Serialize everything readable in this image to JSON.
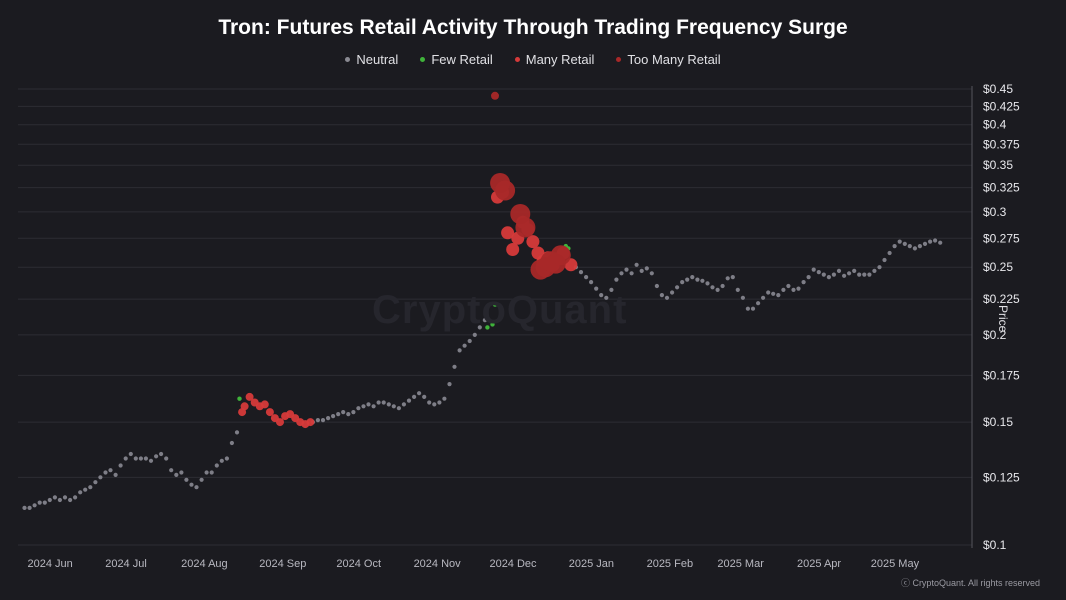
{
  "chart_data": {
    "type": "scatter",
    "title": "Tron: Futures Retail Activity Through Trading Frequency Surge",
    "legend": [
      {
        "label": "Neutral",
        "color": "#8a8a92"
      },
      {
        "label": "Few Retail",
        "color": "#3fb33a"
      },
      {
        "label": "Many Retail",
        "color": "#d63a3a"
      },
      {
        "label": "Too Many Retail",
        "color": "#a82828"
      }
    ],
    "ylabel": "Price",
    "yscale": "log",
    "ylim": [
      0.1,
      0.45
    ],
    "yticks": [
      "$0.1",
      "$0.125",
      "$0.15",
      "$0.175",
      "$0.2",
      "$0.225",
      "$0.25",
      "$0.275",
      "$0.3",
      "$0.325",
      "$0.35",
      "$0.375",
      "$0.4",
      "$0.425",
      "$0.45"
    ],
    "yticks_values": [
      0.1,
      0.125,
      0.15,
      0.175,
      0.2,
      0.225,
      0.25,
      0.275,
      0.3,
      0.325,
      0.35,
      0.375,
      0.4,
      0.425,
      0.45
    ],
    "xticks": [
      "2024 Jun",
      "2024 Jul",
      "2024 Aug",
      "2024 Sep",
      "2024 Oct",
      "2024 Nov",
      "2024 Dec",
      "2025 Jan",
      "2025 Feb",
      "2025 Mar",
      "2025 Apr",
      "2025 May"
    ],
    "xticks_dates": [
      "2024-06-01",
      "2024-07-01",
      "2024-08-01",
      "2024-09-01",
      "2024-10-01",
      "2024-11-01",
      "2024-12-01",
      "2025-01-01",
      "2025-02-01",
      "2025-03-01",
      "2025-04-01",
      "2025-05-01"
    ],
    "xlim": [
      "2024-05-28",
      "2025-06-06"
    ],
    "grid": "horizontal",
    "legend_position": "top-center",
    "series": [
      {
        "name": "Neutral",
        "color": "#8a8a92",
        "points": [
          [
            "2024-05-29",
            0.113
          ],
          [
            "2024-05-31",
            0.113
          ],
          [
            "2024-06-02",
            0.114
          ],
          [
            "2024-06-04",
            0.115
          ],
          [
            "2024-06-06",
            0.115
          ],
          [
            "2024-06-08",
            0.116
          ],
          [
            "2024-06-10",
            0.117
          ],
          [
            "2024-06-12",
            0.116
          ],
          [
            "2024-06-14",
            0.117
          ],
          [
            "2024-06-16",
            0.116
          ],
          [
            "2024-06-18",
            0.117
          ],
          [
            "2024-06-20",
            0.119
          ],
          [
            "2024-06-22",
            0.12
          ],
          [
            "2024-06-24",
            0.121
          ],
          [
            "2024-06-26",
            0.123
          ],
          [
            "2024-06-28",
            0.125
          ],
          [
            "2024-06-30",
            0.127
          ],
          [
            "2024-07-02",
            0.128
          ],
          [
            "2024-07-04",
            0.126
          ],
          [
            "2024-07-06",
            0.13
          ],
          [
            "2024-07-08",
            0.133
          ],
          [
            "2024-07-10",
            0.135
          ],
          [
            "2024-07-12",
            0.133
          ],
          [
            "2024-07-14",
            0.133
          ],
          [
            "2024-07-16",
            0.133
          ],
          [
            "2024-07-18",
            0.132
          ],
          [
            "2024-07-20",
            0.134
          ],
          [
            "2024-07-22",
            0.135
          ],
          [
            "2024-07-24",
            0.133
          ],
          [
            "2024-07-26",
            0.128
          ],
          [
            "2024-07-28",
            0.126
          ],
          [
            "2024-07-30",
            0.127
          ],
          [
            "2024-08-01",
            0.124
          ],
          [
            "2024-08-03",
            0.122
          ],
          [
            "2024-08-05",
            0.121
          ],
          [
            "2024-08-07",
            0.124
          ],
          [
            "2024-08-09",
            0.127
          ],
          [
            "2024-08-11",
            0.127
          ],
          [
            "2024-08-13",
            0.13
          ],
          [
            "2024-08-15",
            0.132
          ],
          [
            "2024-08-17",
            0.133
          ],
          [
            "2024-08-19",
            0.14
          ],
          [
            "2024-08-21",
            0.145
          ],
          [
            "2024-09-20",
            0.15
          ],
          [
            "2024-09-22",
            0.151
          ],
          [
            "2024-09-24",
            0.151
          ],
          [
            "2024-09-26",
            0.152
          ],
          [
            "2024-09-28",
            0.153
          ],
          [
            "2024-09-30",
            0.154
          ],
          [
            "2024-10-02",
            0.155
          ],
          [
            "2024-10-04",
            0.154
          ],
          [
            "2024-10-06",
            0.155
          ],
          [
            "2024-10-08",
            0.157
          ],
          [
            "2024-10-10",
            0.158
          ],
          [
            "2024-10-12",
            0.159
          ],
          [
            "2024-10-14",
            0.158
          ],
          [
            "2024-10-16",
            0.16
          ],
          [
            "2024-10-18",
            0.16
          ],
          [
            "2024-10-20",
            0.159
          ],
          [
            "2024-10-22",
            0.158
          ],
          [
            "2024-10-24",
            0.157
          ],
          [
            "2024-10-26",
            0.159
          ],
          [
            "2024-10-28",
            0.161
          ],
          [
            "2024-10-30",
            0.163
          ],
          [
            "2024-11-01",
            0.165
          ],
          [
            "2024-11-03",
            0.163
          ],
          [
            "2024-11-05",
            0.16
          ],
          [
            "2024-11-07",
            0.159
          ],
          [
            "2024-11-09",
            0.16
          ],
          [
            "2024-11-11",
            0.162
          ],
          [
            "2024-11-13",
            0.17
          ],
          [
            "2024-11-15",
            0.18
          ],
          [
            "2024-11-17",
            0.19
          ],
          [
            "2024-11-19",
            0.193
          ],
          [
            "2024-11-21",
            0.196
          ],
          [
            "2024-11-23",
            0.2
          ],
          [
            "2024-11-25",
            0.205
          ],
          [
            "2024-11-27",
            0.21
          ],
          [
            "2025-01-02",
            0.25
          ],
          [
            "2025-01-04",
            0.246
          ],
          [
            "2025-01-06",
            0.242
          ],
          [
            "2025-01-08",
            0.238
          ],
          [
            "2025-01-10",
            0.233
          ],
          [
            "2025-01-12",
            0.228
          ],
          [
            "2025-01-14",
            0.226
          ],
          [
            "2025-01-16",
            0.232
          ],
          [
            "2025-01-18",
            0.24
          ],
          [
            "2025-01-20",
            0.245
          ],
          [
            "2025-01-22",
            0.248
          ],
          [
            "2025-01-24",
            0.245
          ],
          [
            "2025-01-26",
            0.252
          ],
          [
            "2025-01-28",
            0.247
          ],
          [
            "2025-01-30",
            0.249
          ],
          [
            "2025-02-01",
            0.245
          ],
          [
            "2025-02-03",
            0.235
          ],
          [
            "2025-02-05",
            0.228
          ],
          [
            "2025-02-07",
            0.226
          ],
          [
            "2025-02-09",
            0.23
          ],
          [
            "2025-02-11",
            0.234
          ],
          [
            "2025-02-13",
            0.238
          ],
          [
            "2025-02-15",
            0.24
          ],
          [
            "2025-02-17",
            0.242
          ],
          [
            "2025-02-19",
            0.24
          ],
          [
            "2025-02-21",
            0.239
          ],
          [
            "2025-02-23",
            0.237
          ],
          [
            "2025-02-25",
            0.234
          ],
          [
            "2025-02-27",
            0.232
          ],
          [
            "2025-03-01",
            0.235
          ],
          [
            "2025-03-03",
            0.241
          ],
          [
            "2025-03-05",
            0.242
          ],
          [
            "2025-03-07",
            0.232
          ],
          [
            "2025-03-09",
            0.226
          ],
          [
            "2025-03-11",
            0.218
          ],
          [
            "2025-03-13",
            0.218
          ],
          [
            "2025-03-15",
            0.222
          ],
          [
            "2025-03-17",
            0.226
          ],
          [
            "2025-03-19",
            0.23
          ],
          [
            "2025-03-21",
            0.229
          ],
          [
            "2025-03-23",
            0.228
          ],
          [
            "2025-03-25",
            0.232
          ],
          [
            "2025-03-27",
            0.235
          ],
          [
            "2025-03-29",
            0.232
          ],
          [
            "2025-03-31",
            0.233
          ],
          [
            "2025-04-02",
            0.238
          ],
          [
            "2025-04-04",
            0.242
          ],
          [
            "2025-04-06",
            0.248
          ],
          [
            "2025-04-08",
            0.246
          ],
          [
            "2025-04-10",
            0.244
          ],
          [
            "2025-04-12",
            0.242
          ],
          [
            "2025-04-14",
            0.244
          ],
          [
            "2025-04-16",
            0.247
          ],
          [
            "2025-04-18",
            0.243
          ],
          [
            "2025-04-20",
            0.245
          ],
          [
            "2025-04-22",
            0.247
          ],
          [
            "2025-04-24",
            0.244
          ],
          [
            "2025-04-26",
            0.244
          ],
          [
            "2025-04-28",
            0.244
          ],
          [
            "2025-04-30",
            0.247
          ],
          [
            "2025-05-02",
            0.25
          ],
          [
            "2025-05-04",
            0.256
          ],
          [
            "2025-05-06",
            0.262
          ],
          [
            "2025-05-08",
            0.268
          ],
          [
            "2025-05-10",
            0.272
          ],
          [
            "2025-05-12",
            0.27
          ],
          [
            "2025-05-14",
            0.268
          ],
          [
            "2025-05-16",
            0.266
          ],
          [
            "2025-05-18",
            0.268
          ],
          [
            "2025-05-20",
            0.27
          ],
          [
            "2025-05-22",
            0.272
          ],
          [
            "2025-05-24",
            0.273
          ],
          [
            "2025-05-26",
            0.271
          ]
        ]
      },
      {
        "name": "Few Retail",
        "color": "#3fb33a",
        "points": [
          [
            "2024-08-22",
            0.162
          ],
          [
            "2024-11-28",
            0.205
          ],
          [
            "2024-11-30",
            0.207
          ],
          [
            "2024-12-01",
            0.221
          ],
          [
            "2024-12-29",
            0.268
          ],
          [
            "2024-12-30",
            0.266
          ]
        ]
      },
      {
        "name": "Many Retail",
        "color": "#d63a3a",
        "points": [
          [
            "2024-08-23",
            0.155
          ],
          [
            "2024-08-24",
            0.158
          ],
          [
            "2024-08-26",
            0.163
          ],
          [
            "2024-08-28",
            0.16
          ],
          [
            "2024-08-30",
            0.158
          ],
          [
            "2024-09-01",
            0.159
          ],
          [
            "2024-09-03",
            0.155
          ],
          [
            "2024-09-05",
            0.152
          ],
          [
            "2024-09-07",
            0.15
          ],
          [
            "2024-09-09",
            0.153
          ],
          [
            "2024-09-11",
            0.154
          ],
          [
            "2024-09-13",
            0.152
          ],
          [
            "2024-09-15",
            0.15
          ],
          [
            "2024-09-17",
            0.149
          ],
          [
            "2024-09-19",
            0.15
          ],
          [
            "2024-12-02",
            0.315
          ],
          [
            "2024-12-04",
            0.32
          ],
          [
            "2024-12-06",
            0.28
          ],
          [
            "2024-12-08",
            0.265
          ],
          [
            "2024-12-10",
            0.275
          ],
          [
            "2024-12-12",
            0.29
          ],
          [
            "2024-12-14",
            0.283
          ],
          [
            "2024-12-16",
            0.272
          ],
          [
            "2024-12-18",
            0.262
          ],
          [
            "2024-12-20",
            0.255
          ],
          [
            "2024-12-22",
            0.258
          ],
          [
            "2024-12-24",
            0.252
          ],
          [
            "2024-12-26",
            0.257
          ],
          [
            "2024-12-28",
            0.262
          ],
          [
            "2024-12-31",
            0.252
          ]
        ]
      },
      {
        "name": "Too Many Retail",
        "color": "#a82828",
        "points": [
          [
            "2024-12-01",
            0.44
          ],
          [
            "2024-12-03",
            0.33
          ],
          [
            "2024-12-05",
            0.322
          ],
          [
            "2024-12-11",
            0.298
          ],
          [
            "2024-12-13",
            0.285
          ],
          [
            "2024-12-19",
            0.248
          ],
          [
            "2024-12-21",
            0.25
          ],
          [
            "2024-12-23",
            0.255
          ],
          [
            "2024-12-25",
            0.253
          ],
          [
            "2024-12-27",
            0.26
          ]
        ]
      }
    ]
  },
  "watermark": "CryptoQuant",
  "copyright": "ⓒ CryptoQuant. All rights reserved"
}
